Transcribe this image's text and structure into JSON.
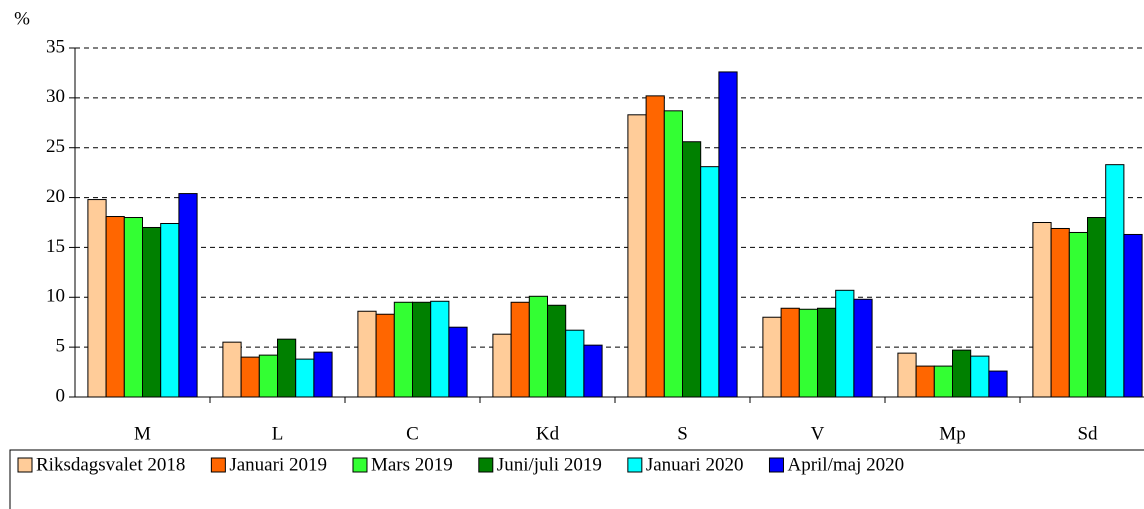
{
  "chart_data": {
    "type": "bar",
    "y_label": "%",
    "categories": [
      "M",
      "L",
      "C",
      "Kd",
      "S",
      "V",
      "Mp",
      "Sd"
    ],
    "series": [
      {
        "name": "Riksdagsvalet 2018",
        "color": "#ffcc99",
        "values": [
          19.8,
          5.5,
          8.6,
          6.3,
          28.3,
          8.0,
          4.4,
          17.5
        ]
      },
      {
        "name": "Januari 2019",
        "color": "#ff6600",
        "values": [
          18.1,
          4.0,
          8.3,
          9.5,
          30.2,
          8.9,
          3.1,
          16.9
        ]
      },
      {
        "name": "Mars 2019",
        "color": "#33ff33",
        "values": [
          18.0,
          4.2,
          9.5,
          10.1,
          28.7,
          8.8,
          3.1,
          16.5
        ]
      },
      {
        "name": "Juni/juli 2019",
        "color": "#008000",
        "values": [
          17.0,
          5.8,
          9.5,
          9.2,
          25.6,
          8.9,
          4.7,
          18.0
        ]
      },
      {
        "name": "Januari 2020",
        "color": "#00ffff",
        "values": [
          17.4,
          3.8,
          9.6,
          6.7,
          23.1,
          10.7,
          4.1,
          23.3
        ]
      },
      {
        "name": "April/maj 2020",
        "color": "#0000ff",
        "values": [
          20.4,
          4.5,
          7.0,
          5.2,
          32.6,
          9.8,
          2.6,
          16.3
        ]
      }
    ],
    "ylim": [
      0,
      35
    ],
    "yticks": [
      0,
      5,
      10,
      15,
      20,
      25,
      30,
      35
    ],
    "grid": true,
    "legend": "bottom"
  }
}
